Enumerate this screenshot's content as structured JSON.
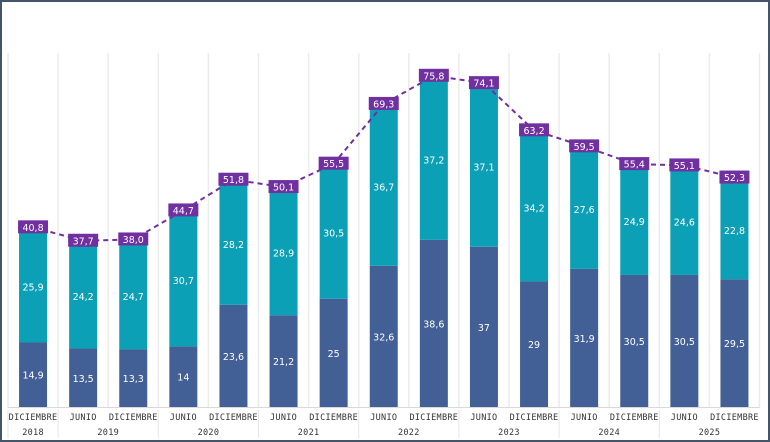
{
  "chart_data": {
    "type": "bar",
    "stacked": true,
    "title": "",
    "xlabel": "",
    "ylabel": "",
    "ylim": [
      0,
      80
    ],
    "grid": false,
    "legend": "none",
    "categories": [
      {
        "period": "DICIEMBRE",
        "year": "2018"
      },
      {
        "period": "JUNIO",
        "year": "2019"
      },
      {
        "period": "DICIEMBRE",
        "year": "2019"
      },
      {
        "period": "JUNIO",
        "year": "2020"
      },
      {
        "period": "DICIEMBRE",
        "year": "2020"
      },
      {
        "period": "JUNIO",
        "year": "2021"
      },
      {
        "period": "DICIEMBRE",
        "year": "2021"
      },
      {
        "period": "JUNIO",
        "year": "2022"
      },
      {
        "period": "DICIEMBRE",
        "year": "2022"
      },
      {
        "period": "JUNIO",
        "year": "2023"
      },
      {
        "period": "DICIEMBRE",
        "year": "2023"
      },
      {
        "period": "JUNIO",
        "year": "2024"
      },
      {
        "period": "DICIEMBRE",
        "year": "2024"
      },
      {
        "period": "JUNIO",
        "year": "2025"
      },
      {
        "period": "DICIEMBRE",
        "year": "2025"
      }
    ],
    "year_groups": [
      "2018",
      "2019",
      "2020",
      "2021",
      "2022",
      "2023",
      "2024",
      "2025"
    ],
    "series": [
      {
        "name": "bottom",
        "color": "#426095",
        "values": [
          14.9,
          13.5,
          13.3,
          14,
          23.6,
          21.2,
          25,
          32.6,
          38.6,
          37,
          29,
          31.9,
          30.5,
          30.5,
          29.5
        ],
        "labels": [
          "14,9",
          "13,5",
          "13,3",
          "14",
          "23,6",
          "21,2",
          "25",
          "32,6",
          "38,6",
          "37",
          "29",
          "31,9",
          "30,5",
          "30,5",
          "29,5"
        ]
      },
      {
        "name": "top",
        "color": "#0ba0b5",
        "values": [
          25.9,
          24.2,
          24.7,
          30.7,
          28.2,
          28.9,
          30.5,
          36.7,
          37.2,
          37.1,
          34.2,
          27.6,
          24.9,
          24.6,
          22.8
        ],
        "labels": [
          "25,9",
          "24,2",
          "24,7",
          "30,7",
          "28,2",
          "28,9",
          "30,5",
          "36,7",
          "37,2",
          "37,1",
          "34,2",
          "27,6",
          "24,9",
          "24,6",
          "22,8"
        ]
      }
    ],
    "totals": {
      "name": "total",
      "style": "dashed-line",
      "color": "#7030a0",
      "values": [
        40.8,
        37.7,
        38.0,
        44.7,
        51.8,
        50.1,
        55.5,
        69.3,
        75.8,
        74.1,
        63.2,
        59.5,
        55.4,
        55.1,
        52.3
      ],
      "labels": [
        "40,8",
        "37,7",
        "38,0",
        "44,7",
        "51,8",
        "50,1",
        "55,5",
        "69,3",
        "75,8",
        "74,1",
        "63,2",
        "59,5",
        "55,4",
        "55,1",
        "52,3"
      ]
    }
  }
}
